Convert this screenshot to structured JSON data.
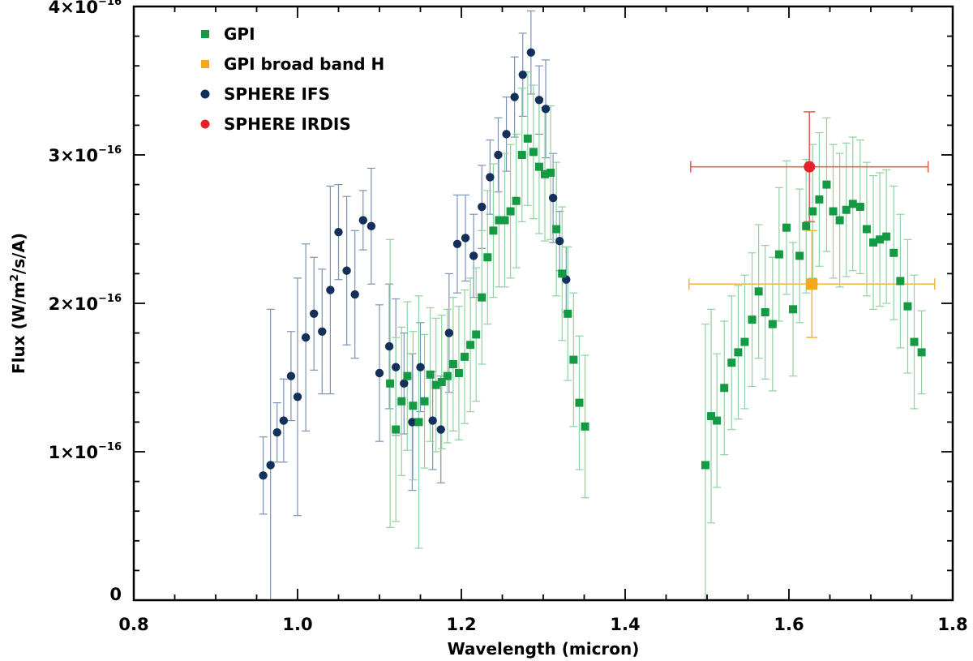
{
  "chart_data": {
    "type": "scatter",
    "xlabel": "Wavelength (micron)",
    "ylabel": "Flux (W/m2/s/A)",
    "xlim": [
      0.8,
      1.8
    ],
    "ylim": [
      0,
      4e-16
    ],
    "x_ticks": [
      {
        "value": 0.8,
        "label": "0.8"
      },
      {
        "value": 1.0,
        "label": "1.0"
      },
      {
        "value": 1.2,
        "label": "1.2"
      },
      {
        "value": 1.4,
        "label": "1.4"
      },
      {
        "value": 1.6,
        "label": "1.6"
      },
      {
        "value": 1.8,
        "label": "1.8"
      }
    ],
    "y_ticks": [
      {
        "value": 0,
        "mantissa": "0",
        "exponent": ""
      },
      {
        "value": 1e-16,
        "mantissa": "1×10",
        "exponent": "−16"
      },
      {
        "value": 2e-16,
        "mantissa": "2×10",
        "exponent": "−16"
      },
      {
        "value": 3e-16,
        "mantissa": "3×10",
        "exponent": "−16"
      },
      {
        "value": 4e-16,
        "mantissa": "4×10",
        "exponent": "−16"
      }
    ],
    "ylabel_parts": {
      "pre": "Flux (W/m",
      "sup": "2",
      "post": "/s/A)"
    },
    "unit": 1e-16,
    "legend": [
      {
        "label": "GPI",
        "marker": "square",
        "color": "#139a43"
      },
      {
        "label": "GPI broad band H",
        "marker": "square",
        "color": "#f5a81c"
      },
      {
        "label": "SPHERE IFS",
        "marker": "circle",
        "color": "#13305a"
      },
      {
        "label": "SPHERE IRDIS",
        "marker": "circle",
        "color": "#e5222a"
      }
    ],
    "series": [
      {
        "name": "SPHERE IFS",
        "marker": "circle",
        "color": "#13305a",
        "err_color": "#7d93b5",
        "points": [
          [
            0.958,
            0.84,
            0.26
          ],
          [
            0.967,
            0.91,
            1.05
          ],
          [
            0.975,
            1.13,
            0.2
          ],
          [
            0.983,
            1.21,
            0.28
          ],
          [
            0.992,
            1.51,
            0.3
          ],
          [
            1.0,
            1.37,
            0.8
          ],
          [
            1.01,
            1.77,
            0.63
          ],
          [
            1.02,
            1.93,
            0.38
          ],
          [
            1.03,
            1.81,
            0.42
          ],
          [
            1.04,
            2.09,
            0.7
          ],
          [
            1.05,
            2.48,
            0.32
          ],
          [
            1.06,
            2.22,
            0.5
          ],
          [
            1.07,
            2.06,
            0.43
          ],
          [
            1.08,
            2.56,
            0.2
          ],
          [
            1.09,
            2.52,
            0.39
          ],
          [
            1.1,
            1.53,
            0.46
          ],
          [
            1.112,
            1.71,
            0.42
          ],
          [
            1.12,
            1.57,
            0.46
          ],
          [
            1.13,
            1.46,
            0.34
          ],
          [
            1.14,
            1.2,
            0.46
          ],
          [
            1.15,
            1.57,
            0.3
          ],
          [
            1.165,
            1.21,
            0.33
          ],
          [
            1.175,
            1.15,
            0.36
          ],
          [
            1.185,
            1.8,
            0.4
          ],
          [
            1.195,
            2.4,
            0.33
          ],
          [
            1.205,
            2.44,
            0.29
          ],
          [
            1.215,
            2.32,
            0.28
          ],
          [
            1.225,
            2.65,
            0.28
          ],
          [
            1.235,
            2.85,
            0.25
          ],
          [
            1.245,
            3.0,
            0.25
          ],
          [
            1.255,
            3.14,
            0.25
          ],
          [
            1.265,
            3.39,
            0.27
          ],
          [
            1.275,
            3.54,
            0.28
          ],
          [
            1.285,
            3.69,
            0.28
          ],
          [
            1.295,
            3.37,
            0.23
          ],
          [
            1.303,
            3.31,
            0.33
          ],
          [
            1.312,
            2.71,
            0.3
          ],
          [
            1.32,
            2.42,
            0.2
          ],
          [
            1.328,
            2.16,
            0.22
          ]
        ]
      },
      {
        "name": "GPI",
        "marker": "square",
        "color": "#139a43",
        "err_color": "#8fd29f",
        "points": [
          [
            1.113,
            1.46,
            0.97
          ],
          [
            1.12,
            1.15,
            0.62
          ],
          [
            1.127,
            1.34,
            0.5
          ],
          [
            1.134,
            1.51,
            0.5
          ],
          [
            1.141,
            1.31,
            0.5
          ],
          [
            1.148,
            1.2,
            0.85
          ],
          [
            1.155,
            1.34,
            0.45
          ],
          [
            1.162,
            1.52,
            0.45
          ],
          [
            1.169,
            1.45,
            0.45
          ],
          [
            1.176,
            1.47,
            0.45
          ],
          [
            1.183,
            1.51,
            0.45
          ],
          [
            1.19,
            1.59,
            0.45
          ],
          [
            1.197,
            1.53,
            0.45
          ],
          [
            1.204,
            1.64,
            0.45
          ],
          [
            1.211,
            1.72,
            0.45
          ],
          [
            1.218,
            1.79,
            0.45
          ],
          [
            1.225,
            2.04,
            0.45
          ],
          [
            1.232,
            2.31,
            0.45
          ],
          [
            1.239,
            2.49,
            0.45
          ],
          [
            1.246,
            2.56,
            0.45
          ],
          [
            1.253,
            2.56,
            0.45
          ],
          [
            1.26,
            2.62,
            0.45
          ],
          [
            1.267,
            2.69,
            0.45
          ],
          [
            1.274,
            3.0,
            0.45
          ],
          [
            1.281,
            3.11,
            0.45
          ],
          [
            1.288,
            3.02,
            0.45
          ],
          [
            1.295,
            2.92,
            0.45
          ],
          [
            1.302,
            2.87,
            0.45
          ],
          [
            1.309,
            2.88,
            0.45
          ],
          [
            1.316,
            2.5,
            0.45
          ],
          [
            1.323,
            2.2,
            0.45
          ],
          [
            1.33,
            1.93,
            0.45
          ],
          [
            1.337,
            1.62,
            0.45
          ],
          [
            1.344,
            1.33,
            0.45
          ],
          [
            1.351,
            1.17,
            0.48
          ],
          [
            1.498,
            0.91,
            0.95
          ],
          [
            1.505,
            1.24,
            0.72
          ],
          [
            1.512,
            1.21,
            0.45
          ],
          [
            1.521,
            1.43,
            0.45
          ],
          [
            1.53,
            1.6,
            0.45
          ],
          [
            1.538,
            1.67,
            0.45
          ],
          [
            1.546,
            1.74,
            0.45
          ],
          [
            1.555,
            1.89,
            0.45
          ],
          [
            1.563,
            2.08,
            0.45
          ],
          [
            1.571,
            1.94,
            0.45
          ],
          [
            1.58,
            1.86,
            0.45
          ],
          [
            1.588,
            2.33,
            0.45
          ],
          [
            1.597,
            2.51,
            0.45
          ],
          [
            1.605,
            1.96,
            0.45
          ],
          [
            1.613,
            2.32,
            0.45
          ],
          [
            1.621,
            2.52,
            0.45
          ],
          [
            1.629,
            2.62,
            0.45
          ],
          [
            1.637,
            2.7,
            0.45
          ],
          [
            1.646,
            2.8,
            0.45
          ],
          [
            1.654,
            2.62,
            0.45
          ],
          [
            1.662,
            2.56,
            0.45
          ],
          [
            1.67,
            2.63,
            0.45
          ],
          [
            1.678,
            2.67,
            0.45
          ],
          [
            1.687,
            2.65,
            0.45
          ],
          [
            1.695,
            2.5,
            0.45
          ],
          [
            1.703,
            2.41,
            0.45
          ],
          [
            1.711,
            2.43,
            0.45
          ],
          [
            1.719,
            2.45,
            0.45
          ],
          [
            1.728,
            2.34,
            0.45
          ],
          [
            1.736,
            2.15,
            0.45
          ],
          [
            1.745,
            1.98,
            0.45
          ],
          [
            1.753,
            1.74,
            0.45
          ],
          [
            1.762,
            1.67,
            0.28
          ]
        ]
      },
      {
        "name": "GPI broad band H",
        "marker": "square",
        "color": "#f5a81c",
        "err_color": "#f5b84a",
        "points": [
          [
            1.628,
            2.13,
            0.36,
            0.15
          ]
        ]
      },
      {
        "name": "SPHERE IRDIS",
        "marker": "circle",
        "color": "#e5222a",
        "err_color": "#e66060",
        "points": [
          [
            1.625,
            2.92,
            0.37,
            0.145
          ]
        ]
      }
    ]
  }
}
